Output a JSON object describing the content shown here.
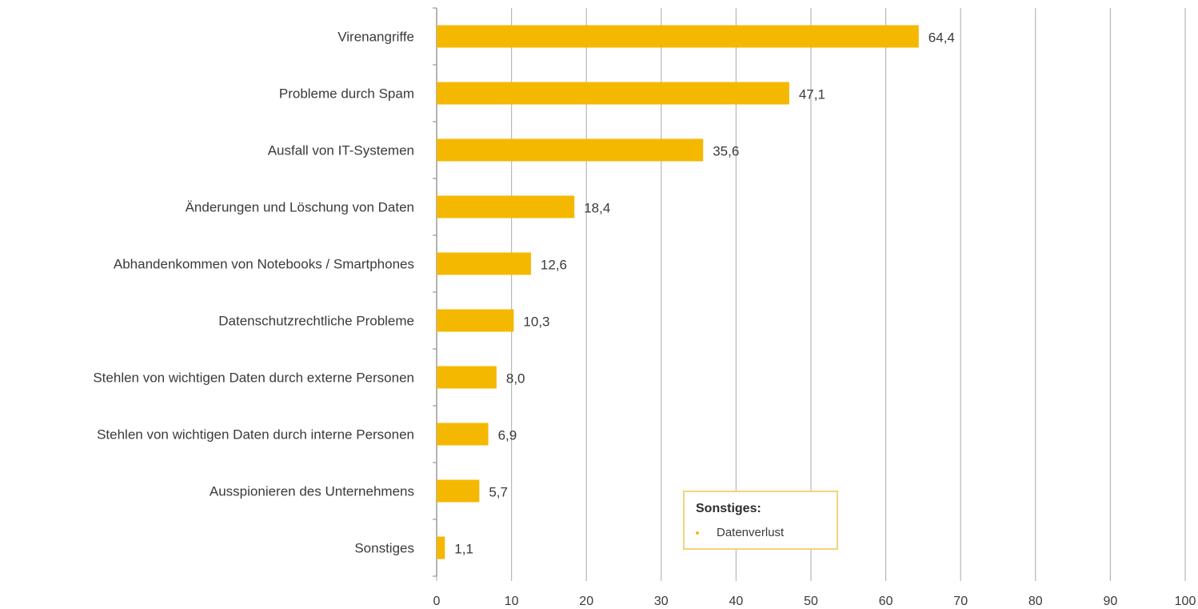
{
  "chart_data": {
    "type": "bar",
    "orientation": "horizontal",
    "categories": [
      "Virenangriffe",
      "Probleme durch Spam",
      "Ausfall von IT-Systemen",
      "Änderungen und Löschung von Daten",
      "Abhandenkommen von Notebooks / Smartphones",
      "Datenschutzrechtliche Probleme",
      "Stehlen von wichtigen Daten durch externe Personen",
      "Stehlen von wichtigen Daten durch interne Personen",
      "Ausspionieren des Unternehmens",
      "Sonstiges"
    ],
    "values": [
      64.4,
      47.1,
      35.6,
      18.4,
      12.6,
      10.3,
      8.0,
      6.9,
      5.7,
      1.1
    ],
    "value_labels": [
      "64,4",
      "47,1",
      "35,6",
      "18,4",
      "12,6",
      "10,3",
      "8,0",
      "6,9",
      "5,7",
      "1,1"
    ],
    "xlim": [
      0,
      100
    ],
    "xticks": [
      "0",
      "10",
      "20",
      "30",
      "40",
      "50",
      "60",
      "70",
      "80",
      "90",
      "100"
    ],
    "grid": "vertical",
    "bar_color": "#f5b800",
    "grid_color": "#b8b8b8",
    "title": "",
    "xlabel": "",
    "ylabel": ""
  },
  "legend": {
    "title": "Sonstiges:",
    "items": [
      {
        "label": "Datenverlust",
        "color": "#f5b800"
      }
    ],
    "border_color": "#f5d27a",
    "placement": "bottom-right"
  }
}
